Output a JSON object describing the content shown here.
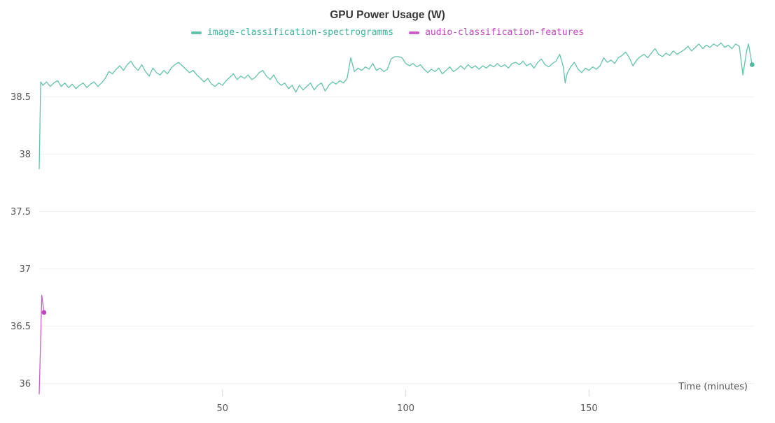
{
  "chart": {
    "title": "GPU Power Usage (W)"
  },
  "chart_data": {
    "type": "line",
    "title": "GPU Power Usage (W)",
    "xlabel": "Time (minutes)",
    "ylabel": "",
    "xlim": [
      0,
      195.2
    ],
    "ylim": [
      35.9,
      38.99
    ],
    "x_ticks": [
      50,
      100,
      150
    ],
    "y_ticks": [
      36,
      36.5,
      37,
      37.5,
      38,
      38.5
    ],
    "grid": "horizontal-only",
    "legend_position": "top-center",
    "axis_text_color": "#565656",
    "gridline_color": "#f0f0f0",
    "series": [
      {
        "name": "image-classification-spectrogramms",
        "color": "#64c2ac",
        "text_color": "#3fb39c",
        "dot_color": "#52bba2",
        "end_dot": true,
        "data": [
          [
            0,
            37.87
          ],
          [
            0.4,
            38.63
          ],
          [
            1,
            38.6
          ],
          [
            2,
            38.63
          ],
          [
            3,
            38.59
          ],
          [
            4,
            38.62
          ],
          [
            5,
            38.64
          ],
          [
            6,
            38.59
          ],
          [
            7,
            38.62
          ],
          [
            8,
            38.58
          ],
          [
            9,
            38.61
          ],
          [
            10,
            38.57
          ],
          [
            11,
            38.6
          ],
          [
            12,
            38.62
          ],
          [
            13,
            38.58
          ],
          [
            14,
            38.61
          ],
          [
            15,
            38.63
          ],
          [
            16,
            38.59
          ],
          [
            17,
            38.62
          ],
          [
            18,
            38.66
          ],
          [
            19,
            38.72
          ],
          [
            20,
            38.7
          ],
          [
            21,
            38.74
          ],
          [
            22,
            38.77
          ],
          [
            23,
            38.73
          ],
          [
            24,
            38.78
          ],
          [
            25,
            38.81
          ],
          [
            26,
            38.76
          ],
          [
            27,
            38.73
          ],
          [
            28,
            38.78
          ],
          [
            29,
            38.72
          ],
          [
            30,
            38.68
          ],
          [
            31,
            38.75
          ],
          [
            32,
            38.71
          ],
          [
            33,
            38.69
          ],
          [
            34,
            38.73
          ],
          [
            35,
            38.7
          ],
          [
            36,
            38.75
          ],
          [
            37,
            38.78
          ],
          [
            38,
            38.8
          ],
          [
            39,
            38.77
          ],
          [
            40,
            38.74
          ],
          [
            41,
            38.71
          ],
          [
            42,
            38.73
          ],
          [
            43,
            38.69
          ],
          [
            44,
            38.66
          ],
          [
            45,
            38.63
          ],
          [
            46,
            38.66
          ],
          [
            47,
            38.61
          ],
          [
            48,
            38.59
          ],
          [
            49,
            38.62
          ],
          [
            50,
            38.6
          ],
          [
            51,
            38.64
          ],
          [
            52,
            38.67
          ],
          [
            53,
            38.7
          ],
          [
            54,
            38.65
          ],
          [
            55,
            38.68
          ],
          [
            56,
            38.66
          ],
          [
            57,
            38.69
          ],
          [
            58,
            38.65
          ],
          [
            59,
            38.67
          ],
          [
            60,
            38.71
          ],
          [
            61,
            38.73
          ],
          [
            62,
            38.68
          ],
          [
            63,
            38.65
          ],
          [
            64,
            38.69
          ],
          [
            65,
            38.63
          ],
          [
            66,
            38.6
          ],
          [
            67,
            38.62
          ],
          [
            68,
            38.57
          ],
          [
            69,
            38.6
          ],
          [
            70,
            38.54
          ],
          [
            71,
            38.6
          ],
          [
            72,
            38.56
          ],
          [
            73,
            38.59
          ],
          [
            74,
            38.62
          ],
          [
            75,
            38.56
          ],
          [
            76,
            38.6
          ],
          [
            77,
            38.62
          ],
          [
            78,
            38.55
          ],
          [
            79,
            38.6
          ],
          [
            80,
            38.63
          ],
          [
            81,
            38.61
          ],
          [
            82,
            38.64
          ],
          [
            83,
            38.62
          ],
          [
            84,
            38.66
          ],
          [
            85,
            38.84
          ],
          [
            86,
            38.72
          ],
          [
            87,
            38.75
          ],
          [
            88,
            38.73
          ],
          [
            89,
            38.76
          ],
          [
            90,
            38.74
          ],
          [
            91,
            38.79
          ],
          [
            92,
            38.73
          ],
          [
            93,
            38.75
          ],
          [
            94,
            38.72
          ],
          [
            95,
            38.74
          ],
          [
            96,
            38.83
          ],
          [
            97,
            38.85
          ],
          [
            98,
            38.85
          ],
          [
            99,
            38.84
          ],
          [
            100,
            38.79
          ],
          [
            101,
            38.77
          ],
          [
            102,
            38.79
          ],
          [
            103,
            38.76
          ],
          [
            104,
            38.78
          ],
          [
            105,
            38.74
          ],
          [
            106,
            38.71
          ],
          [
            107,
            38.74
          ],
          [
            108,
            38.72
          ],
          [
            109,
            38.75
          ],
          [
            110,
            38.7
          ],
          [
            111,
            38.73
          ],
          [
            112,
            38.76
          ],
          [
            113,
            38.72
          ],
          [
            114,
            38.74
          ],
          [
            115,
            38.77
          ],
          [
            116,
            38.74
          ],
          [
            117,
            38.78
          ],
          [
            118,
            38.75
          ],
          [
            119,
            38.77
          ],
          [
            120,
            38.74
          ],
          [
            121,
            38.77
          ],
          [
            122,
            38.75
          ],
          [
            123,
            38.78
          ],
          [
            124,
            38.76
          ],
          [
            125,
            38.79
          ],
          [
            126,
            38.76
          ],
          [
            127,
            38.78
          ],
          [
            128,
            38.75
          ],
          [
            129,
            38.79
          ],
          [
            130,
            38.8
          ],
          [
            131,
            38.78
          ],
          [
            132,
            38.81
          ],
          [
            133,
            38.77
          ],
          [
            134,
            38.79
          ],
          [
            135,
            38.75
          ],
          [
            136,
            38.8
          ],
          [
            137,
            38.83
          ],
          [
            138,
            38.78
          ],
          [
            139,
            38.76
          ],
          [
            140,
            38.79
          ],
          [
            141,
            38.81
          ],
          [
            142,
            38.87
          ],
          [
            143,
            38.76
          ],
          [
            143.5,
            38.62
          ],
          [
            144,
            38.7
          ],
          [
            145,
            38.76
          ],
          [
            146,
            38.8
          ],
          [
            147,
            38.74
          ],
          [
            148,
            38.71
          ],
          [
            149,
            38.75
          ],
          [
            150,
            38.73
          ],
          [
            151,
            38.76
          ],
          [
            152,
            38.74
          ],
          [
            153,
            38.77
          ],
          [
            154,
            38.84
          ],
          [
            155,
            38.8
          ],
          [
            156,
            38.82
          ],
          [
            157,
            38.79
          ],
          [
            158,
            38.84
          ],
          [
            159,
            38.86
          ],
          [
            160,
            38.89
          ],
          [
            161,
            38.84
          ],
          [
            162,
            38.77
          ],
          [
            163,
            38.82
          ],
          [
            164,
            38.85
          ],
          [
            165,
            38.87
          ],
          [
            166,
            38.84
          ],
          [
            167,
            38.88
          ],
          [
            168,
            38.92
          ],
          [
            169,
            38.87
          ],
          [
            170,
            38.85
          ],
          [
            171,
            38.88
          ],
          [
            172,
            38.86
          ],
          [
            173,
            38.9
          ],
          [
            174,
            38.87
          ],
          [
            175,
            38.89
          ],
          [
            176,
            38.91
          ],
          [
            177,
            38.94
          ],
          [
            178,
            38.9
          ],
          [
            179,
            38.93
          ],
          [
            180,
            38.96
          ],
          [
            181,
            38.92
          ],
          [
            182,
            38.95
          ],
          [
            183,
            38.93
          ],
          [
            184,
            38.96
          ],
          [
            185,
            38.94
          ],
          [
            186,
            38.97
          ],
          [
            187,
            38.93
          ],
          [
            188,
            38.95
          ],
          [
            189,
            38.92
          ],
          [
            190,
            38.96
          ],
          [
            191,
            38.94
          ],
          [
            192,
            38.69
          ],
          [
            193,
            38.9
          ],
          [
            193.5,
            38.96
          ],
          [
            194.5,
            38.78
          ]
        ]
      },
      {
        "name": "audio-classification-features",
        "color": "#c95fc9",
        "text_color": "#c046c0",
        "dot_color": "#bd48bd",
        "end_dot": true,
        "data": [
          [
            0,
            35.91
          ],
          [
            0.7,
            36.77
          ],
          [
            1.3,
            36.62
          ]
        ]
      }
    ]
  }
}
